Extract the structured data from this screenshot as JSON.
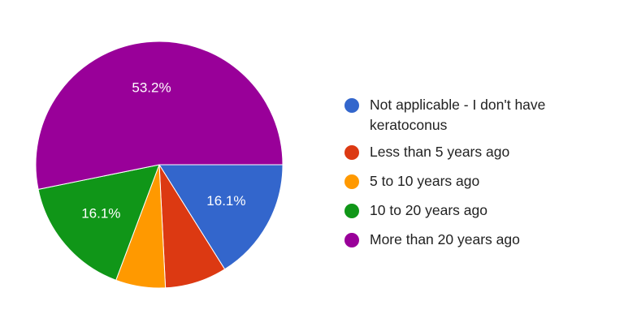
{
  "chart_data": {
    "type": "pie",
    "title": "",
    "slices": [
      {
        "label": "Not applicable - I don't have keratoconus",
        "value": 16.1,
        "display": "16.1%",
        "color": "#3366cc"
      },
      {
        "label": "Less than 5 years ago",
        "value": 8.1,
        "display": "",
        "color": "#dc3912"
      },
      {
        "label": "5 to 10 years ago",
        "value": 6.5,
        "display": "",
        "color": "#ff9900"
      },
      {
        "label": "10 to 20 years ago",
        "value": 16.1,
        "display": "16.1%",
        "color": "#109618"
      },
      {
        "label": "More than 20 years ago",
        "value": 53.2,
        "display": "53.2%",
        "color": "#990099"
      }
    ],
    "start_angle_deg": 90,
    "direction": "clockwise",
    "legend_position": "right"
  }
}
